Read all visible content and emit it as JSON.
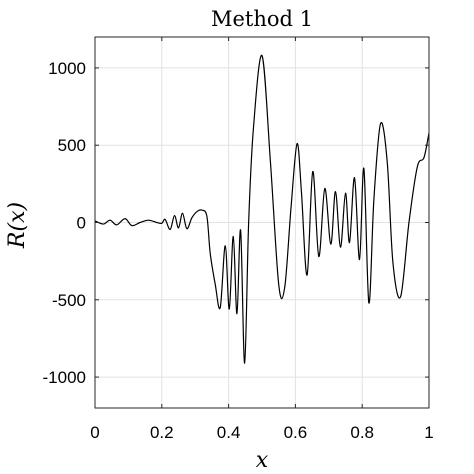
{
  "chart_data": {
    "type": "line",
    "title": "Method 1",
    "xlabel": "x",
    "ylabel": "R(x)",
    "xlim": [
      0,
      1
    ],
    "ylim": [
      -1200,
      1200
    ],
    "grid": true,
    "xticks": [
      0,
      0.2,
      0.4,
      0.6,
      0.8,
      1
    ],
    "xtick_labels": [
      "0",
      "0.2",
      "0.4",
      "0.6",
      "0.8",
      "1"
    ],
    "yticks": [
      -1000,
      -500,
      0,
      500,
      1000
    ],
    "ytick_labels": [
      "-1000",
      "-500",
      "0",
      "500",
      "1000"
    ],
    "series": [
      {
        "color": "#000000",
        "x": [
          0,
          0.025,
          0.045,
          0.065,
          0.09,
          0.11,
          0.135,
          0.16,
          0.185,
          0.2,
          0.21,
          0.225,
          0.238,
          0.25,
          0.262,
          0.275,
          0.29,
          0.305,
          0.32,
          0.335,
          0.345,
          0.36,
          0.375,
          0.39,
          0.402,
          0.414,
          0.425,
          0.436,
          0.448,
          0.46,
          0.474,
          0.5,
          0.525,
          0.55,
          0.568,
          0.587,
          0.605,
          0.618,
          0.635,
          0.652,
          0.67,
          0.688,
          0.706,
          0.72,
          0.735,
          0.75,
          0.762,
          0.777,
          0.792,
          0.805,
          0.82,
          0.835,
          0.855,
          0.875,
          0.892,
          0.915,
          0.94,
          0.965,
          0.985,
          1
        ],
        "y": [
          10,
          -10,
          15,
          -15,
          25,
          -20,
          0,
          15,
          0,
          -5,
          20,
          -45,
          45,
          -35,
          60,
          -40,
          30,
          70,
          80,
          40,
          -200,
          -400,
          -550,
          -150,
          -560,
          -90,
          -590,
          -50,
          -910,
          0,
          600,
          1080,
          400,
          -400,
          -420,
          100,
          510,
          200,
          -340,
          330,
          -220,
          220,
          -140,
          200,
          -160,
          190,
          -130,
          290,
          -240,
          350,
          -520,
          150,
          640,
          390,
          -260,
          -480,
          0,
          360,
          420,
          580
        ]
      }
    ]
  }
}
